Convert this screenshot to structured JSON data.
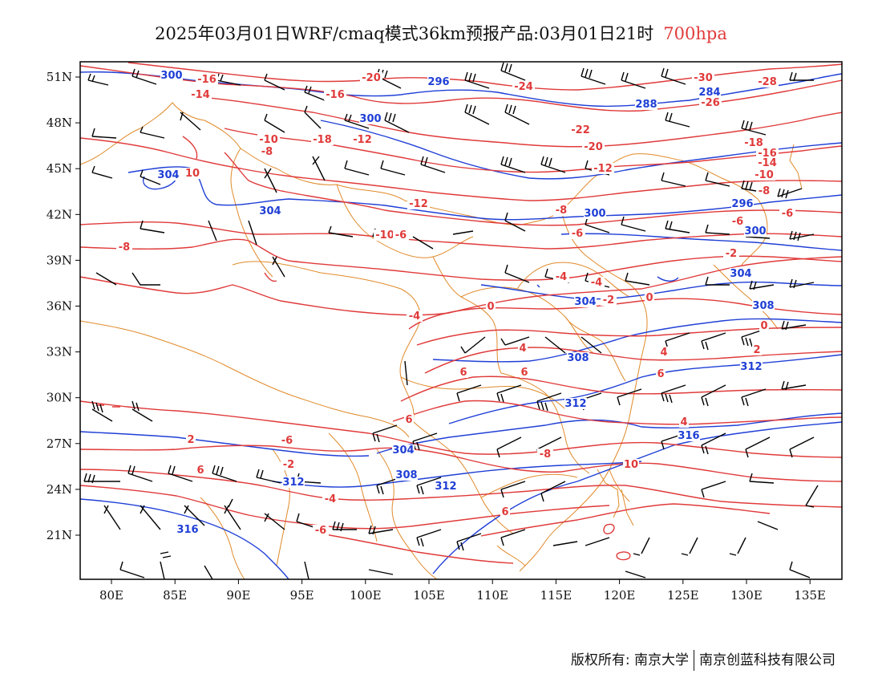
{
  "title": {
    "text": "2025年03月01日WRF/cmaq模式36km预报产品:03月01日21时",
    "level": "700hpa"
  },
  "colors": {
    "temperature": "#e03a3a",
    "height": "#1f3fd6",
    "border": "#e08a2a",
    "wind": "#000000"
  },
  "axes": {
    "x_ticks": [
      "80E",
      "85E",
      "90E",
      "95E",
      "100E",
      "105E",
      "110E",
      "115E",
      "120E",
      "125E",
      "130E",
      "135E"
    ],
    "y_ticks": [
      "51N",
      "48N",
      "45N",
      "42N",
      "39N",
      "36N",
      "33N",
      "30N",
      "27N",
      "24N",
      "21N"
    ]
  },
  "temperature_labels": [
    "-16",
    "-14",
    "-20",
    "-24",
    "-30",
    "-28",
    "-26",
    "-16",
    "-18",
    "-10",
    "-8",
    "-12",
    "-22",
    "-20",
    "-18",
    "-16",
    "-14",
    "-12",
    "-10",
    "-8",
    "-6",
    "-12",
    "-10",
    "-6",
    "-8",
    "-6",
    "-8",
    "-6",
    "-2",
    "-4",
    "-2",
    "0",
    "-4",
    "0",
    "4",
    "4",
    "2",
    "0",
    "-4",
    "6",
    "6",
    "6",
    "4",
    "2",
    "6",
    "-6",
    "-2",
    "-4",
    "6",
    "-6",
    "-8",
    "6",
    "10",
    "10"
  ],
  "height_labels": [
    "300",
    "296",
    "288",
    "284",
    "300",
    "304",
    "304",
    "300",
    "296",
    "300",
    "304",
    "304",
    "308",
    "308",
    "312",
    "312",
    "316",
    "312",
    "304",
    "308",
    "312",
    "316"
  ],
  "icons": {
    "wind-barb": "wind barb symbol"
  },
  "footer": {
    "left": "版权所有: 南京大学",
    "right": "南京创蓝科技有限公司"
  }
}
